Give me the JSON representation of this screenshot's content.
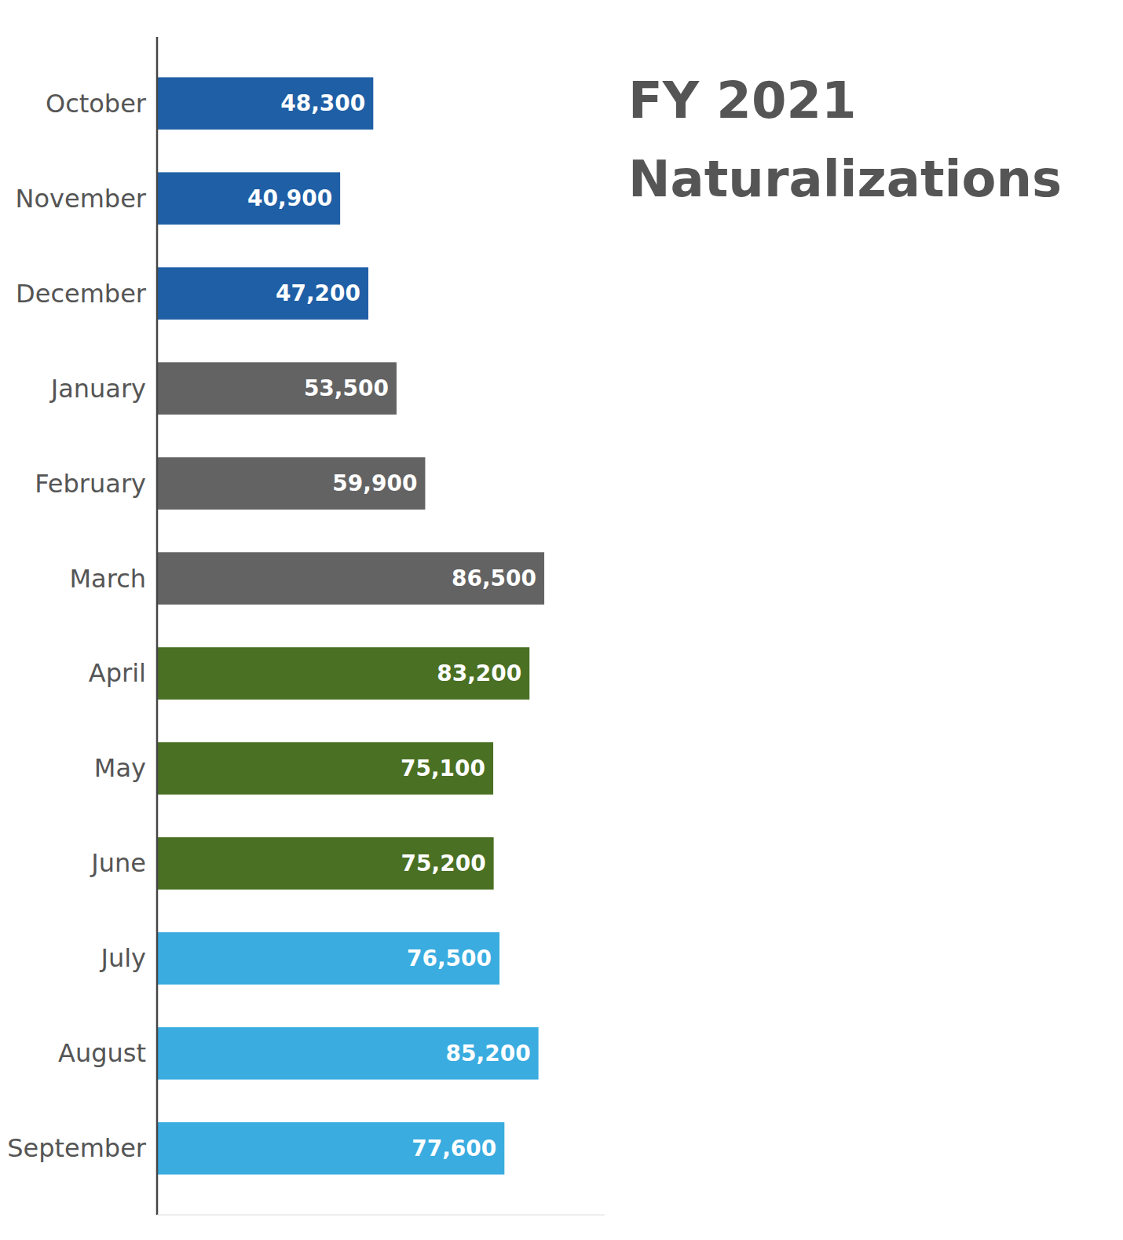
{
  "chart_data": {
    "type": "bar",
    "orientation": "horizontal",
    "title": "FY 2021",
    "subtitle": "Naturalizations",
    "categories": [
      "October",
      "November",
      "December",
      "January",
      "February",
      "March",
      "April",
      "May",
      "June",
      "July",
      "August",
      "September"
    ],
    "values": [
      48300,
      40900,
      47200,
      53500,
      59900,
      86500,
      83200,
      75100,
      75200,
      76500,
      85200,
      77600
    ],
    "value_labels": [
      "48,300",
      "40,900",
      "47,200",
      "53,500",
      "59,900",
      "86,500",
      "83,200",
      "75,100",
      "75,200",
      "76,500",
      "85,200",
      "77,600"
    ],
    "colors": [
      "#1F5FA6",
      "#1F5FA6",
      "#1F5FA6",
      "#636363",
      "#636363",
      "#636363",
      "#4A7023",
      "#4A7023",
      "#4A7023",
      "#3AACE0",
      "#3AACE0",
      "#3AACE0"
    ],
    "xlim": [
      0,
      100000
    ],
    "data_labels": true,
    "tick_labels": "y",
    "grid": false
  }
}
